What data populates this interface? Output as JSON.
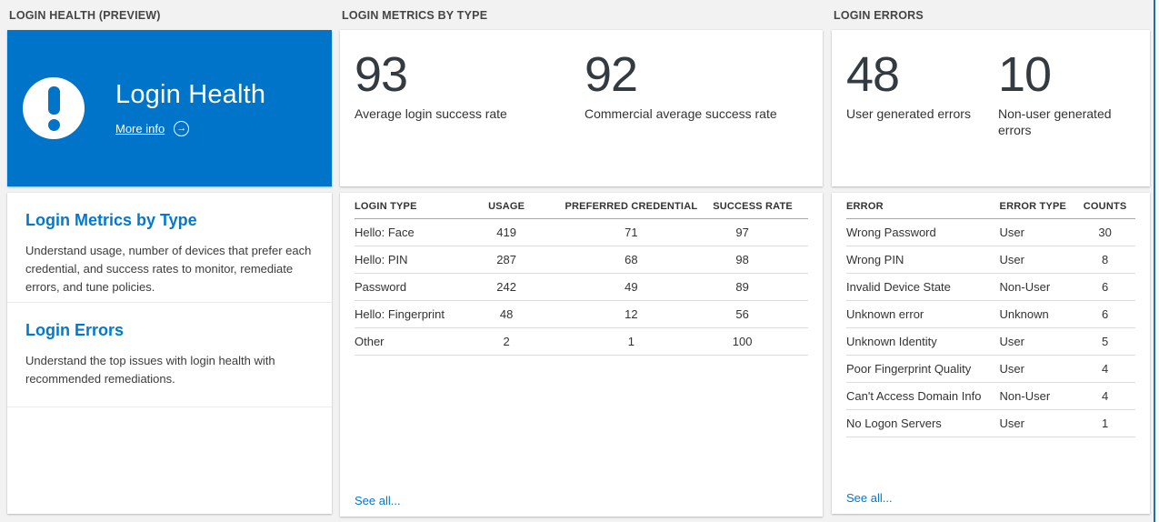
{
  "colors": {
    "accent": "#0078d4",
    "hero_background": "#0074c8",
    "page_background": "#f2f2f2",
    "edge_line": "#1c70b0"
  },
  "columns": [
    {
      "header": "LOGIN HEALTH (PREVIEW)"
    },
    {
      "header": "LOGIN METRICS BY TYPE"
    },
    {
      "header": "LOGIN ERRORS"
    }
  ],
  "hero": {
    "title": "Login Health",
    "more_info_label": "More info",
    "icon": "exclamation-icon"
  },
  "nav_card": {
    "items": [
      {
        "title": "Login Metrics by Type",
        "description": "Understand usage, number of devices that prefer each credential, and success rates to monitor, remediate errors, and tune policies."
      },
      {
        "title": "Login Errors",
        "description": "Understand the top issues with login health with recommended remediations."
      }
    ]
  },
  "metrics": {
    "stats": [
      {
        "value": "93",
        "label": "Average login success rate"
      },
      {
        "value": "92",
        "label": "Commercial average success rate"
      }
    ],
    "table": {
      "columns": [
        "LOGIN TYPE",
        "USAGE",
        "PREFERRED CREDENTIAL",
        "SUCCESS RATE"
      ],
      "rows": [
        [
          "Hello: Face",
          "419",
          "71",
          "97"
        ],
        [
          "Hello: PIN",
          "287",
          "68",
          "98"
        ],
        [
          "Password",
          "242",
          "49",
          "89"
        ],
        [
          "Hello: Fingerprint",
          "48",
          "12",
          "56"
        ],
        [
          "Other",
          "2",
          "1",
          "100"
        ]
      ],
      "see_all_label": "See all..."
    }
  },
  "errors": {
    "stats": [
      {
        "value": "48",
        "label": "User generated errors"
      },
      {
        "value": "10",
        "label": "Non-user generated errors"
      }
    ],
    "table": {
      "columns": [
        "ERROR",
        "ERROR TYPE",
        "COUNTS"
      ],
      "rows": [
        [
          "Wrong Password",
          "User",
          "30"
        ],
        [
          "Wrong PIN",
          "User",
          "8"
        ],
        [
          "Invalid Device State",
          "Non-User",
          "6"
        ],
        [
          "Unknown error",
          "Unknown",
          "6"
        ],
        [
          "Unknown Identity",
          "User",
          "5"
        ],
        [
          "Poor Fingerprint Quality",
          "User",
          "4"
        ],
        [
          "Can't Access Domain Info",
          "Non-User",
          "4"
        ],
        [
          "No Logon Servers",
          "User",
          "1"
        ]
      ],
      "see_all_label": "See all..."
    }
  }
}
